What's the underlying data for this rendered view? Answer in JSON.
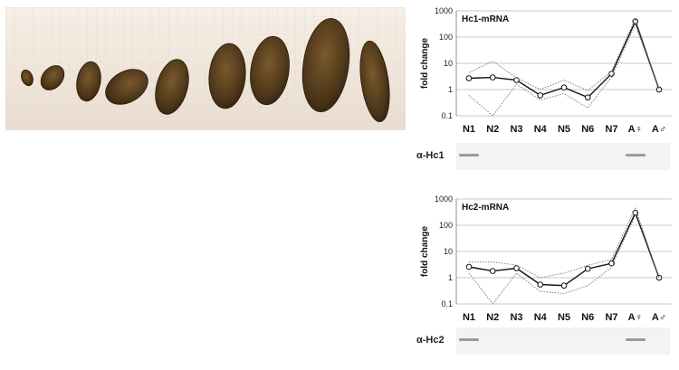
{
  "photo": {
    "description_icon": "cockroach-developmental-stages-photo"
  },
  "chart_data": [
    {
      "type": "line",
      "title": "Hc1-mRNA",
      "ylabel": "fold change",
      "yscale": "log",
      "ylim": [
        0.1,
        1000
      ],
      "yticks": [
        "1000",
        "100",
        "10",
        "1",
        "0.1"
      ],
      "categories": [
        "N1",
        "N2",
        "N3",
        "N4",
        "N5",
        "N6",
        "N7",
        "A♀",
        "A♂"
      ],
      "series": [
        {
          "values": [
            2.7,
            2.9,
            2.3,
            0.6,
            1.2,
            0.5,
            4.0,
            400,
            1.0
          ],
          "style": "mean"
        },
        {
          "values": [
            4.5,
            12,
            2.8,
            1.0,
            2.3,
            0.9,
            5.0,
            500,
            1.0
          ],
          "style": "range-upper"
        },
        {
          "values": [
            0.6,
            0.1,
            1.6,
            0.4,
            0.7,
            0.2,
            3.0,
            300,
            1.0
          ],
          "style": "range-lower"
        }
      ],
      "grid": true,
      "blot_label": "α-Hc1",
      "blot_bands": [
        "N1",
        "A♀"
      ]
    },
    {
      "type": "line",
      "title": "Hc2-mRNA",
      "ylabel": "fold change",
      "yscale": "log",
      "ylim": [
        0.1,
        1000
      ],
      "yticks": [
        "1000",
        "100",
        "10",
        "1",
        "0.1"
      ],
      "categories": [
        "N1",
        "N2",
        "N3",
        "N4",
        "N5",
        "N6",
        "N7",
        "A♀",
        "A♂"
      ],
      "series": [
        {
          "values": [
            2.6,
            1.8,
            2.3,
            0.55,
            0.5,
            2.2,
            3.5,
            300,
            1.0
          ],
          "style": "mean"
        },
        {
          "values": [
            4.0,
            4.0,
            3.0,
            1.0,
            1.5,
            3.0,
            5.0,
            450,
            1.0
          ],
          "style": "range-upper"
        },
        {
          "values": [
            1.5,
            0.1,
            1.5,
            0.3,
            0.25,
            0.5,
            2.5,
            250,
            1.0
          ],
          "style": "range-lower"
        }
      ],
      "grid": true,
      "blot_label": "α-Hc2",
      "blot_bands": [
        "N1",
        "A♀"
      ]
    }
  ]
}
